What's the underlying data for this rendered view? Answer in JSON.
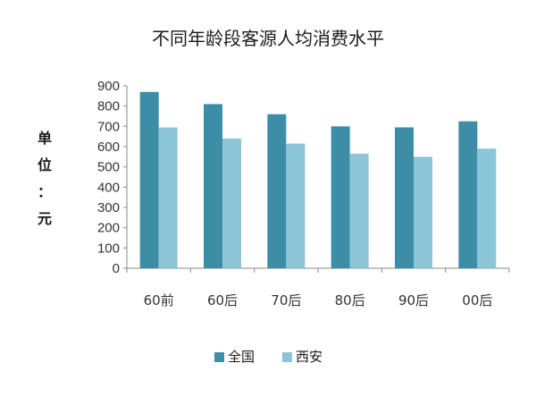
{
  "chart_data": {
    "type": "bar",
    "title": "不同年龄段客源人均消费水平",
    "ylabel_chars": [
      "单",
      "位",
      "：",
      "元"
    ],
    "categories": [
      "60前",
      "60后",
      "70后",
      "80后",
      "90后",
      "00后"
    ],
    "series": [
      {
        "name": "全国",
        "color": "#3b8ea5",
        "values": [
          870,
          810,
          760,
          700,
          695,
          725
        ]
      },
      {
        "name": "西安",
        "color": "#8cc4d8",
        "values": [
          695,
          640,
          615,
          565,
          550,
          590
        ]
      }
    ],
    "ylim": [
      0,
      900
    ],
    "yticks": [
      0,
      100,
      200,
      300,
      400,
      500,
      600,
      700,
      800,
      900
    ],
    "grid": false,
    "legend_position": "bottom"
  }
}
